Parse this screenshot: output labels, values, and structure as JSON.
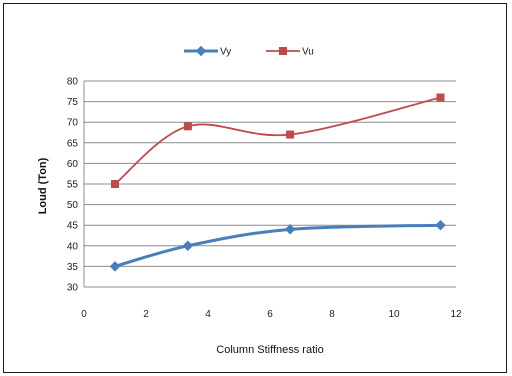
{
  "chart_data": {
    "type": "line",
    "title": "",
    "xlabel": "Column Stiffness ratio",
    "ylabel": "Loud (Ton)",
    "xlim": [
      0,
      12
    ],
    "ylim": [
      30,
      80
    ],
    "x_ticks": [
      0,
      2,
      4,
      6,
      8,
      10,
      12
    ],
    "y_ticks": [
      30,
      35,
      40,
      45,
      50,
      55,
      60,
      65,
      70,
      75,
      80
    ],
    "grid": "horizontal",
    "legend_position": "top",
    "smooth": true,
    "series": [
      {
        "name": "Vy",
        "color": "#4a7ebb",
        "marker": "diamond",
        "x": [
          1.0,
          3.35,
          6.65,
          11.5
        ],
        "y": [
          35,
          40,
          44,
          45
        ]
      },
      {
        "name": "Vu",
        "color": "#be4b48",
        "marker": "square",
        "x": [
          1.0,
          3.35,
          6.65,
          11.5
        ],
        "y": [
          55,
          69,
          67,
          76
        ]
      }
    ]
  }
}
